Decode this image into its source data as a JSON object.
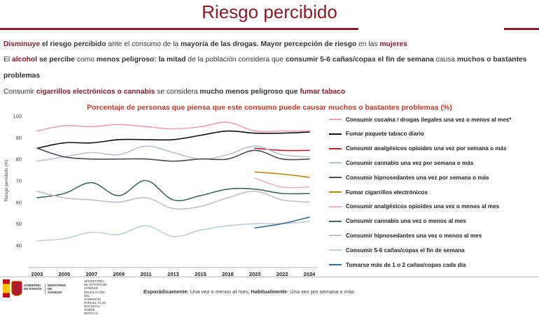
{
  "header": {
    "title": "Riesgo percibido"
  },
  "intro": {
    "p1": [
      {
        "t": "Disminuye",
        "s": "hl"
      },
      {
        "t": " el riesgo percibido",
        "s": "b"
      },
      {
        "t": " ante el consumo de la ",
        "s": ""
      },
      {
        "t": "mayoría de las drogas.",
        "s": "b"
      },
      {
        "t": " Mayor percepción de riesgo",
        "s": "b"
      },
      {
        "t": " en las ",
        "s": ""
      },
      {
        "t": "mujeres",
        "s": "hl"
      }
    ],
    "p2": [
      {
        "t": "El ",
        "s": ""
      },
      {
        "t": "alcohol",
        "s": "hl"
      },
      {
        "t": " se percibe",
        "s": "b"
      },
      {
        "t": " como ",
        "s": ""
      },
      {
        "t": "menos peligroso:",
        "s": "b"
      },
      {
        "t": " la mitad",
        "s": "b"
      },
      {
        "t": " de la población considera que ",
        "s": ""
      },
      {
        "t": "consumir 5-6 cañas/copas el fin de semana",
        "s": "b"
      },
      {
        "t": " causa ",
        "s": ""
      },
      {
        "t": "muchos o bastantes",
        "s": "b"
      }
    ],
    "p2b": [
      {
        "t": "problemas",
        "s": "b"
      }
    ],
    "p3": [
      {
        "t": "Consumir ",
        "s": ""
      },
      {
        "t": "cigarrillos electrónicos o cannabis",
        "s": "hl"
      },
      {
        "t": " se considera ",
        "s": ""
      },
      {
        "t": "mucho menos peligroso que",
        "s": "b"
      },
      {
        "t": " fumar tabaco",
        "s": "hl"
      }
    ]
  },
  "chart_data": {
    "type": "line",
    "title": "Porcentaje de personas que piensa que este consumo puede causar muchos o bastantes problemas (%)",
    "ylabel": "Riesgo percibido (%)",
    "xlabel": "",
    "ylim": [
      40,
      100
    ],
    "yticks": [
      40,
      50,
      60,
      70,
      80,
      90,
      100
    ],
    "x": [
      2003,
      2005,
      2007,
      2009,
      2011,
      2013,
      2015,
      2018,
      2020,
      2022,
      2024
    ],
    "grid": false,
    "legend_position": "right",
    "series": [
      {
        "name": "Consumir cocaína / drogas ilegales una vez o menos al mes*",
        "color": "#e8a0b0",
        "width": 1.6,
        "values": [
          93,
          95.5,
          95,
          96,
          95,
          94,
          95,
          97,
          93,
          93,
          93
        ]
      },
      {
        "name": "Fumar paquete tabaco diario",
        "color": "#111111",
        "width": 1.6,
        "values": [
          85,
          87.5,
          87.5,
          89,
          89,
          89,
          91,
          93,
          92,
          92,
          92.5
        ]
      },
      {
        "name": "Consumir analgésicos opioides una vez por semana o más",
        "color": "#b5202e",
        "width": 1.6,
        "values": [
          null,
          null,
          null,
          null,
          null,
          null,
          null,
          null,
          85,
          84,
          84
        ]
      },
      {
        "name": "Consumir cannabis una vez por semana o más",
        "color": "#b8c4c8",
        "width": 1.6,
        "values": [
          79,
          81,
          83,
          82,
          86,
          83,
          80,
          82,
          86,
          82,
          81
        ]
      },
      {
        "name": "Consumir hipnosedantes una vez por semana o más",
        "color": "#4a4a5a",
        "width": 1.6,
        "values": [
          85,
          81,
          80,
          80,
          80,
          79,
          80,
          80,
          84,
          80,
          80
        ]
      },
      {
        "name": "Fumar cigarrillos electrónicos",
        "color": "#b8860b",
        "width": 1.6,
        "values": [
          null,
          null,
          null,
          null,
          null,
          null,
          null,
          null,
          74,
          73,
          71.5
        ]
      },
      {
        "name": "Consumir analgésicos opioides una vez o menos al mes",
        "color": "#f0b0c0",
        "width": 1.6,
        "values": [
          null,
          null,
          null,
          null,
          null,
          null,
          null,
          null,
          71,
          67,
          67
        ]
      },
      {
        "name": "Consumir cannabis una vez o menos al mes",
        "color": "#3e6b5e",
        "width": 1.6,
        "values": [
          62,
          64,
          69,
          63,
          70,
          61,
          63,
          66,
          66,
          64,
          64
        ]
      },
      {
        "name": "Consumir hipnosedantes una vez o menos al mes",
        "color": "#c0c0c8",
        "width": 1.6,
        "values": [
          65,
          62,
          61,
          60,
          62,
          57,
          58,
          62,
          65,
          61,
          60
        ]
      },
      {
        "name": "Consumir 5-6 cañas/copas el fin de semana",
        "color": "#c0d0d8",
        "width": 1.6,
        "values": [
          42,
          43,
          46,
          45,
          49,
          44,
          47,
          49,
          50,
          50,
          51
        ]
      },
      {
        "name": "Tomarse más de 1 o 2 cañas/copas cada día",
        "color": "#3a6e8f",
        "width": 1.6,
        "values": [
          null,
          null,
          null,
          null,
          null,
          null,
          null,
          null,
          48,
          50,
          53
        ]
      }
    ]
  },
  "footer": {
    "note_a_label": "Esporádicamente",
    "note_a_text": ": Una vez o menos al mes; ",
    "note_b_label": "Habitualmente",
    "note_b_text": ": Una vez por semana o más",
    "logo_gobierno": "GOBIERNO DE ESPAÑA",
    "logo_ministerio": "MINISTERIO DE SANIDAD",
    "logo_secretaria": "SECRETARÍA DE ESTADO DE SANIDAD",
    "logo_delegacion": "DELEGACIÓN DEL GOBIERNO PARA EL PLAN NACIONAL SOBRE DROGAS"
  }
}
